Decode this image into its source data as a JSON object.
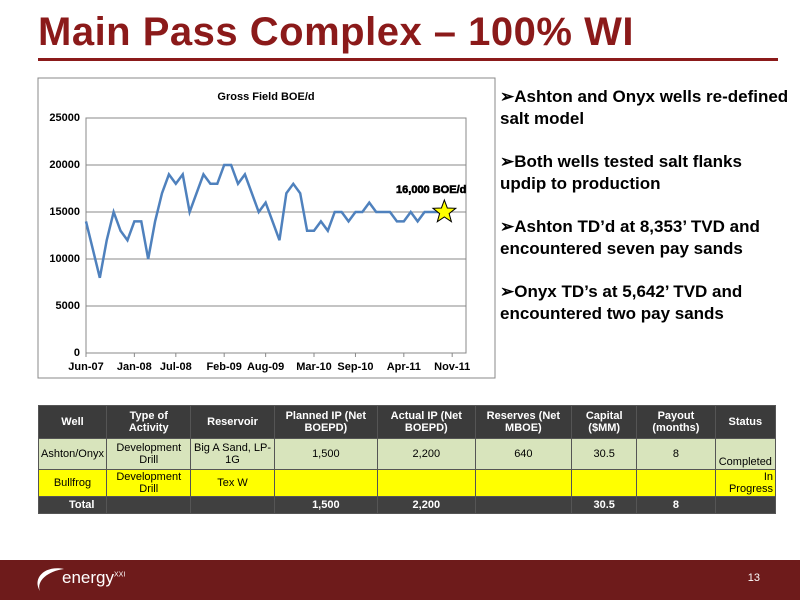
{
  "title": "Main Pass Complex – 100% WI",
  "chart_data": {
    "type": "line",
    "title": "Gross Field BOE/d",
    "x": [
      "2007-06",
      "2007-07",
      "2007-08",
      "2007-09",
      "2007-10",
      "2007-11",
      "2007-12",
      "2008-01",
      "2008-02",
      "2008-03",
      "2008-04",
      "2008-05",
      "2008-06",
      "2008-07",
      "2008-08",
      "2008-09",
      "2008-10",
      "2008-11",
      "2008-12",
      "2009-01",
      "2009-02",
      "2009-03",
      "2009-04",
      "2009-05",
      "2009-06",
      "2009-07",
      "2009-08",
      "2009-09",
      "2009-10",
      "2009-11",
      "2009-12",
      "2010-01",
      "2010-02",
      "2010-03",
      "2010-04",
      "2010-05",
      "2010-06",
      "2010-07",
      "2010-08",
      "2010-09",
      "2010-10",
      "2010-11",
      "2010-12",
      "2011-01",
      "2011-02",
      "2011-03",
      "2011-04",
      "2011-05",
      "2011-06",
      "2011-07",
      "2011-08",
      "2011-09"
    ],
    "series": [
      {
        "name": "Gross Field BOE/d",
        "color": "#4f81bd",
        "values": [
          14000,
          11000,
          8000,
          12000,
          15000,
          13000,
          12000,
          14000,
          14000,
          10000,
          14000,
          17000,
          19000,
          18000,
          19000,
          15000,
          17000,
          19000,
          18000,
          18000,
          20000,
          20000,
          18000,
          19000,
          17000,
          15000,
          16000,
          14000,
          12000,
          17000,
          18000,
          17000,
          13000,
          13000,
          14000,
          13000,
          15000,
          15000,
          14000,
          15000,
          15000,
          16000,
          15000,
          15000,
          15000,
          14000,
          14000,
          15000,
          14000,
          15000,
          15000,
          15000
        ]
      }
    ],
    "xlim": [
      "2007-06",
      "2012-01"
    ],
    "xticks": [
      {
        "value": "2007-06",
        "label": "Jun-07"
      },
      {
        "value": "2008-01",
        "label": "Jan-08"
      },
      {
        "value": "2008-07",
        "label": "Jul-08"
      },
      {
        "value": "2009-02",
        "label": "Feb-09"
      },
      {
        "value": "2009-08",
        "label": "Aug-09"
      },
      {
        "value": "2010-03",
        "label": "Mar-10"
      },
      {
        "value": "2010-09",
        "label": "Sep-10"
      },
      {
        "value": "2011-04",
        "label": "Apr-11"
      },
      {
        "value": "2011-11",
        "label": "Nov-11"
      }
    ],
    "ylim": [
      0,
      25000
    ],
    "yticks": [
      0,
      5000,
      10000,
      15000,
      20000,
      25000
    ],
    "grid": true,
    "annotation": "16,000 BOE/d"
  },
  "bullets": [
    "Ashton and Onyx wells re-defined salt model",
    "Both wells tested salt flanks updip to production",
    "Ashton TD’d at 8,353’ TVD and encountered seven pay sands",
    "Onyx TD’s at 5,642’ TVD and encountered two pay sands"
  ],
  "table": {
    "header": [
      "Well",
      "Type of Activity",
      "Reservoir",
      "Planned IP (Net BOEPD)",
      "Actual IP (Net BOEPD)",
      "Reserves (Net MBOE)",
      "Capital ($MM)",
      "Payout (months)",
      "Status"
    ],
    "rows": [
      [
        "Ashton/Onyx",
        "Development Drill",
        "Big A Sand, LP-1G",
        "1,500",
        "2,200",
        "640",
        "30.5",
        "8",
        "Completed"
      ],
      [
        "Bullfrog",
        "Development Drill",
        "Tex W",
        null,
        null,
        null,
        null,
        null,
        "In Progress"
      ],
      [
        "Total",
        null,
        null,
        "1,500",
        "2,200",
        null,
        "30.5",
        "8",
        null
      ]
    ]
  },
  "footer": {
    "logo": "energy",
    "logo_suffix": "XXI",
    "page": "13"
  }
}
